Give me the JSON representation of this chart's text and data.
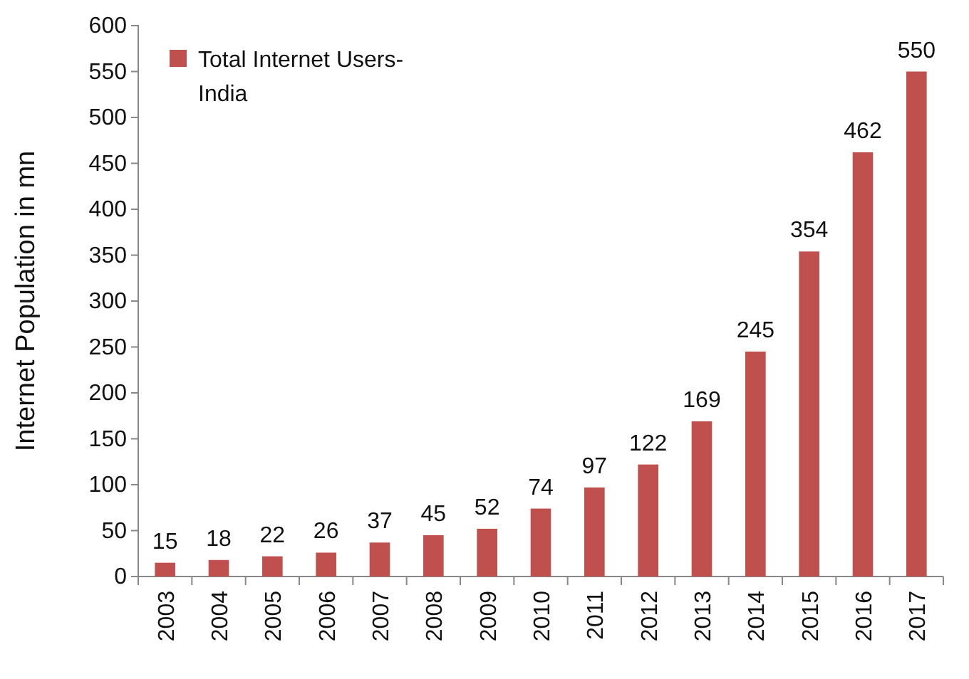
{
  "chart_data": {
    "type": "bar",
    "ylabel": "Internet Population in mn",
    "categories": [
      "2003",
      "2004",
      "2005",
      "2006",
      "2007",
      "2008",
      "2009",
      "2010",
      "2011",
      "2012",
      "2013",
      "2014",
      "2015",
      "2016",
      "2017"
    ],
    "series": [
      {
        "name": "Total Internet Users-India",
        "color": "#c0504d",
        "values": [
          15,
          18,
          22,
          26,
          37,
          45,
          52,
          74,
          97,
          122,
          169,
          245,
          354,
          462,
          550
        ]
      }
    ],
    "ylim": [
      0,
      600
    ],
    "yticks": [
      0,
      50,
      100,
      150,
      200,
      250,
      300,
      350,
      400,
      450,
      500,
      550,
      600
    ],
    "data_labels": true,
    "grid": false,
    "legend": "top left"
  }
}
